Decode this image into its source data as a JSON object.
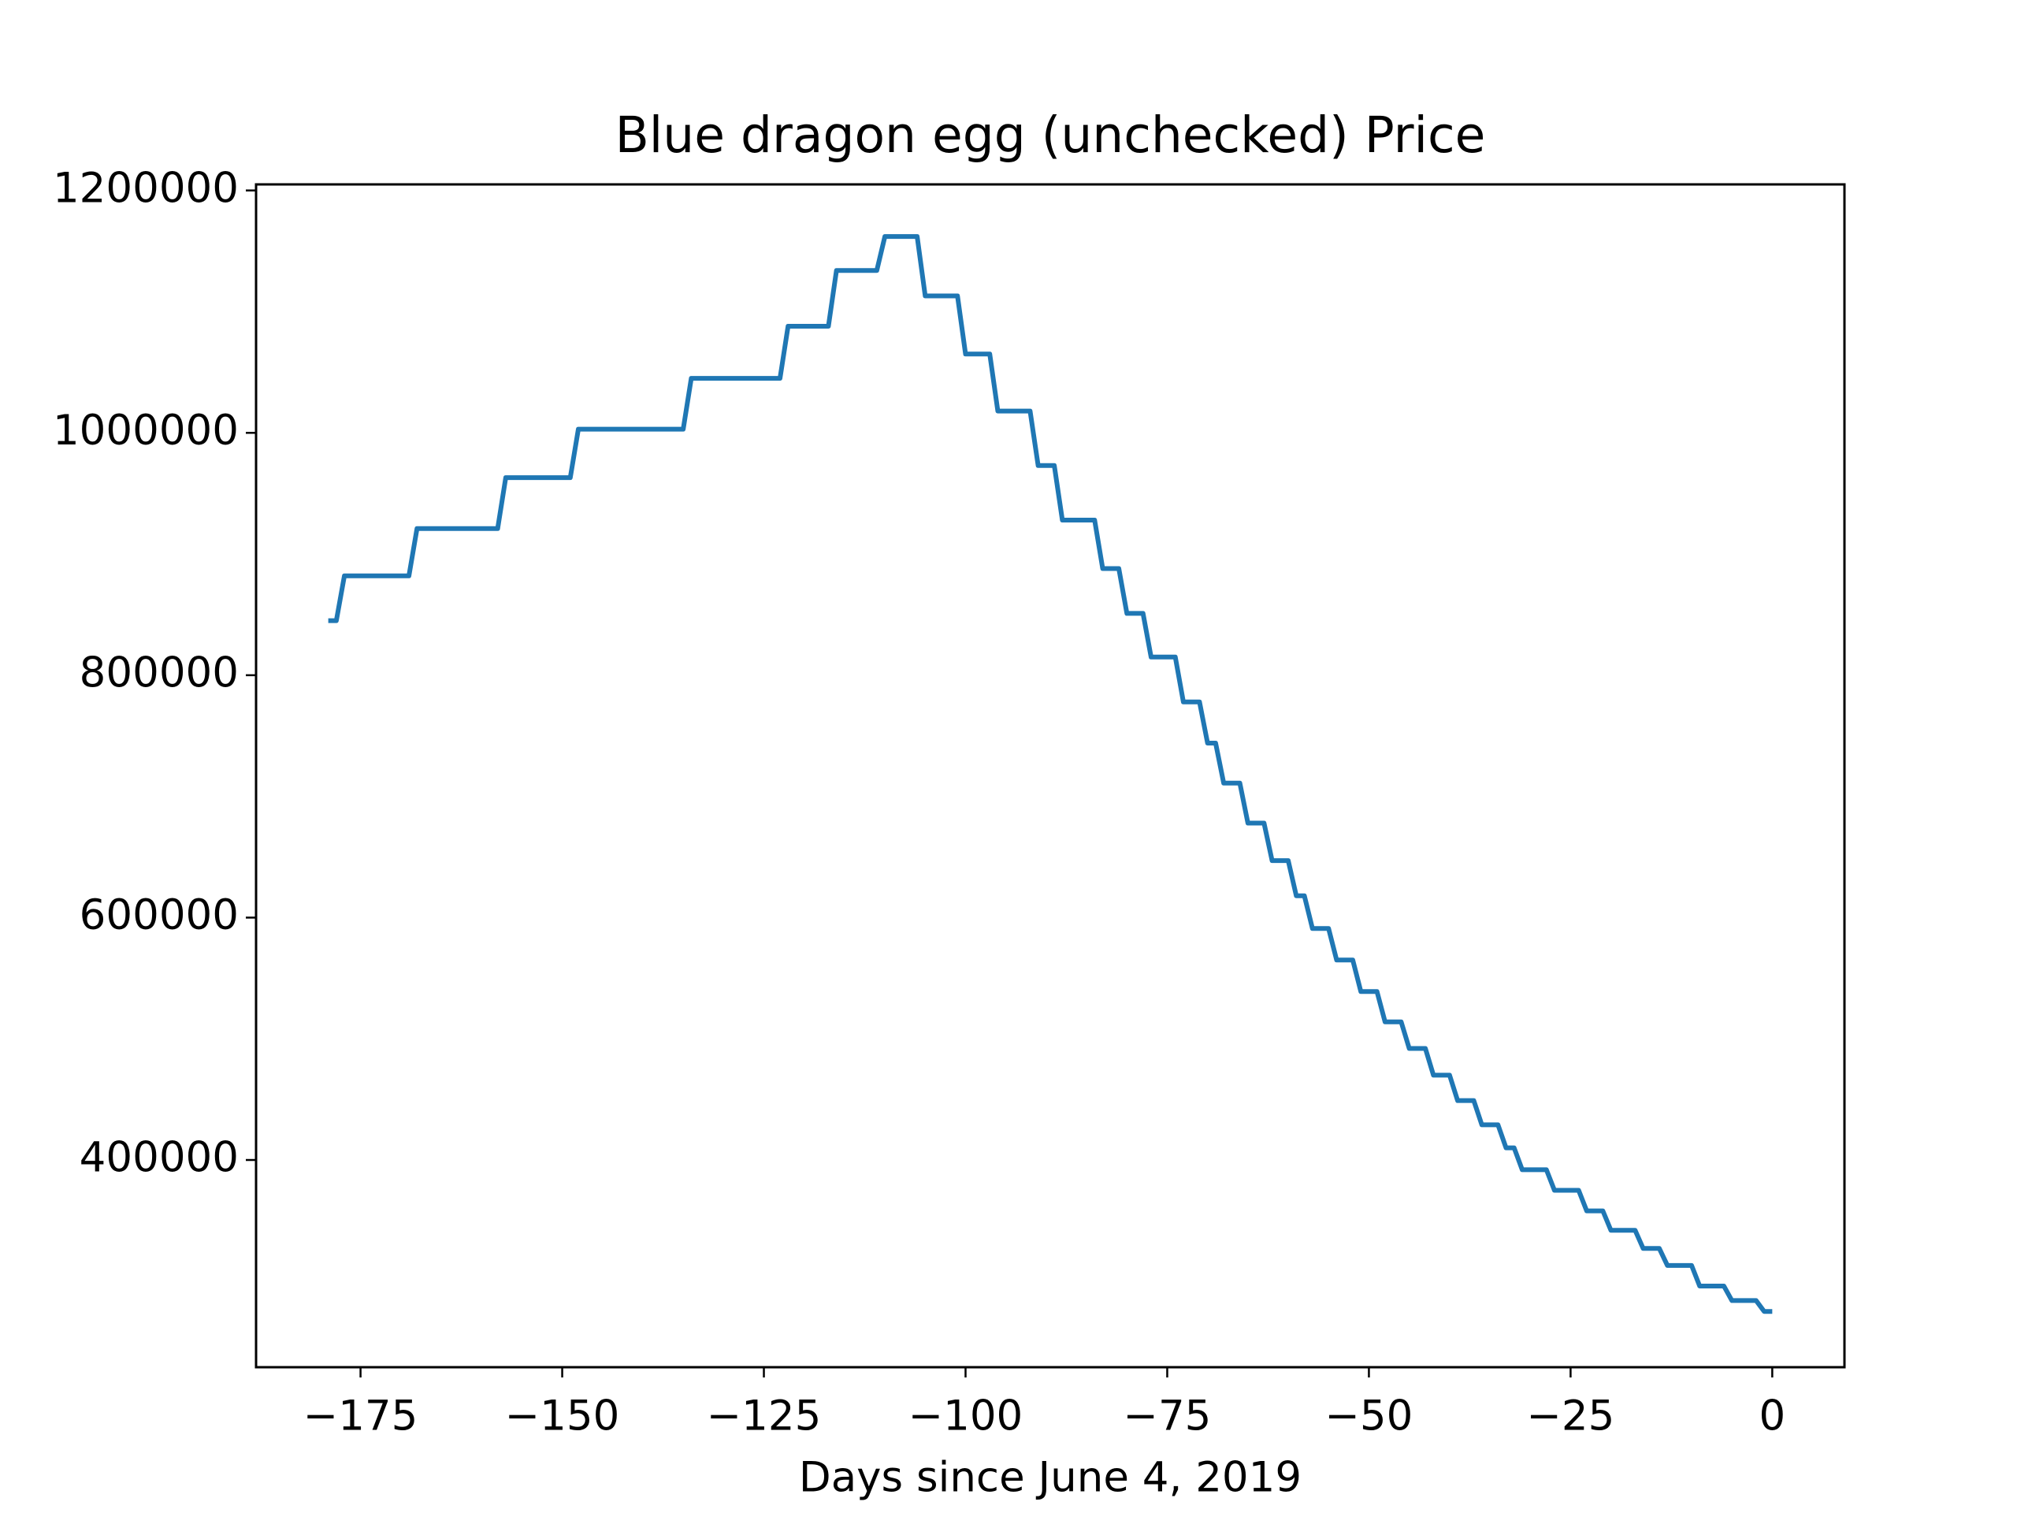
{
  "chart_data": {
    "type": "line",
    "title": "Blue dragon egg (unchecked) Price",
    "x_label": "Days since June 4, 2019",
    "x": [
      -179,
      -178,
      -177,
      -169,
      -168,
      -158,
      -157,
      -149,
      -148,
      -135,
      -134,
      -123,
      -122,
      -117,
      -116,
      -111,
      -110,
      -106,
      -105,
      -101,
      -100,
      -97,
      -96,
      -92,
      -91,
      -89,
      -88,
      -84,
      -83,
      -81,
      -80,
      -78,
      -77,
      -74,
      -73,
      -71,
      -70,
      -69,
      -68,
      -66,
      -65,
      -63,
      -62,
      -60,
      -59,
      -58,
      -57,
      -55,
      -54,
      -52,
      -51,
      -49,
      -48,
      -46,
      -45,
      -43,
      -42,
      -40,
      -39,
      -37,
      -36,
      -34,
      -33,
      -32,
      -31,
      -28,
      -27,
      -24,
      -23,
      -21,
      -20,
      -17,
      -16,
      -14,
      -13,
      -10,
      -9,
      -6,
      -5,
      -2,
      -1,
      0
    ],
    "series": [
      {
        "color": "#1f77b4",
        "values": [
          845000,
          845000,
          882000,
          882000,
          921000,
          921000,
          963000,
          963000,
          1003000,
          1003000,
          1045000,
          1045000,
          1088000,
          1088000,
          1134000,
          1134000,
          1162000,
          1162000,
          1113000,
          1113000,
          1065000,
          1065000,
          1018000,
          1018000,
          973000,
          973000,
          928000,
          928000,
          888000,
          888000,
          851000,
          851000,
          815000,
          815000,
          778000,
          778000,
          744000,
          744000,
          711000,
          711000,
          678000,
          678000,
          647000,
          647000,
          618000,
          618000,
          591000,
          591000,
          565000,
          565000,
          539000,
          539000,
          514000,
          514000,
          492000,
          492000,
          470000,
          470000,
          449000,
          449000,
          429000,
          429000,
          410000,
          410000,
          392000,
          392000,
          375000,
          375000,
          358000,
          358000,
          342000,
          342000,
          327000,
          327000,
          313000,
          313000,
          296000,
          296000,
          284000,
          284000,
          275000,
          275000
        ]
      }
    ],
    "xlim": [
      -187.95,
      8.95
    ],
    "xticks": [
      {
        "value": -175,
        "label": "−175"
      },
      {
        "value": -150,
        "label": "−150"
      },
      {
        "value": -125,
        "label": "−125"
      },
      {
        "value": -100,
        "label": "−100"
      },
      {
        "value": -75,
        "label": "−75"
      },
      {
        "value": -50,
        "label": "−50"
      },
      {
        "value": -25,
        "label": "−25"
      },
      0
    ],
    "ylim": [
      229000,
      1205000
    ],
    "yticks": [
      400000,
      600000,
      800000,
      1000000,
      1200000
    ],
    "grid": false
  }
}
